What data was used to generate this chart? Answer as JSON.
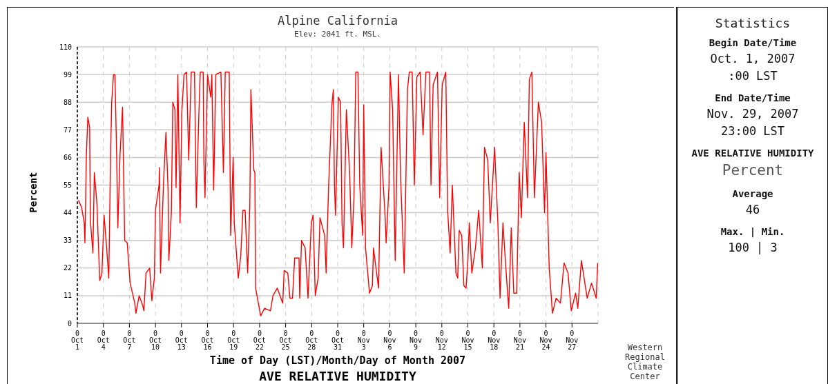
{
  "chart_data": [
    {
      "type": "line",
      "title": "Alpine California",
      "subtitle": "Elev: 2041 ft. MSL.",
      "xlabel": "Time of Day (LST)/Month/Day of Month 2007",
      "ylabel": "Percent",
      "annotations": [
        "AVE RELATIVE HUMIDITY",
        "Western Regional Climate Center"
      ],
      "xlim": [
        "2007-10-01T00:00",
        "2007-11-30T00:00"
      ],
      "ylim": [
        0,
        110
      ],
      "yticks": [
        0,
        11,
        22,
        33,
        44,
        55,
        66,
        77,
        88,
        99,
        110
      ],
      "xticks": [
        {
          "value": "2007-10-01T00:00",
          "label": "0\nOct\n1"
        },
        {
          "value": "2007-10-04T00:00",
          "label": "0\nOct\n4"
        },
        {
          "value": "2007-10-07T00:00",
          "label": "0\nOct\n7"
        },
        {
          "value": "2007-10-10T00:00",
          "label": "0\nOct\n10"
        },
        {
          "value": "2007-10-13T00:00",
          "label": "0\nOct\n13"
        },
        {
          "value": "2007-10-16T00:00",
          "label": "0\nOct\n16"
        },
        {
          "value": "2007-10-19T00:00",
          "label": "0\nOct\n19"
        },
        {
          "value": "2007-10-22T00:00",
          "label": "0\nOct\n22"
        },
        {
          "value": "2007-10-25T00:00",
          "label": "0\nOct\n25"
        },
        {
          "value": "2007-10-28T00:00",
          "label": "0\nOct\n28"
        },
        {
          "value": "2007-10-31T00:00",
          "label": "0\nOct\n31"
        },
        {
          "value": "2007-11-03T00:00",
          "label": "0\nNov\n3"
        },
        {
          "value": "2007-11-06T00:00",
          "label": "0\nNov\n6"
        },
        {
          "value": "2007-11-09T00:00",
          "label": "0\nNov\n9"
        },
        {
          "value": "2007-11-12T00:00",
          "label": "0\nNov\n12"
        },
        {
          "value": "2007-11-15T00:00",
          "label": "0\nNov\n15"
        },
        {
          "value": "2007-11-18T00:00",
          "label": "0\nNov\n18"
        },
        {
          "value": "2007-11-21T00:00",
          "label": "0\nNov\n21"
        },
        {
          "value": "2007-11-24T00:00",
          "label": "0\nNov\n24"
        },
        {
          "value": "2007-11-27T00:00",
          "label": "0\nNov\n27"
        }
      ],
      "grid": true,
      "series": [
        {
          "color": "#ff0000",
          "x": [
            "2007-10-01T03:00",
            "2007-10-01T12:00",
            "2007-10-01T19:00",
            "2007-10-01T21:00",
            "2007-10-02T01:00",
            "2007-10-02T05:00",
            "2007-10-02T10:00",
            "2007-10-02T12:00",
            "2007-10-02T19:00",
            "2007-10-02T23:00",
            "2007-10-03T06:00",
            "2007-10-03T14:00",
            "2007-10-03T20:00",
            "2007-10-04T02:00",
            "2007-10-04T08:00",
            "2007-10-04T15:00",
            "2007-10-04T20:00",
            "2007-10-04T23:00",
            "2007-10-05T04:00",
            "2007-10-05T08:00",
            "2007-10-05T13:00",
            "2007-10-05T16:00",
            "2007-10-05T22:00",
            "2007-10-06T05:00",
            "2007-10-06T11:00",
            "2007-10-06T18:00",
            "2007-10-07T02:00",
            "2007-10-07T15:00",
            "2007-10-07T18:00",
            "2007-10-08T03:00",
            "2007-10-08T13:00",
            "2007-10-08T16:00",
            "2007-10-08T22:00",
            "2007-10-09T08:00",
            "2007-10-09T14:00",
            "2007-10-09T21:00",
            "2007-10-10T00:00",
            "2007-10-10T10:00",
            "2007-10-10T11:00",
            "2007-10-10T14:00",
            "2007-10-10T22:00",
            "2007-10-11T05:00",
            "2007-10-11T11:00",
            "2007-10-11T13:00",
            "2007-10-11T20:00",
            "2007-10-12T00:00",
            "2007-10-12T06:00",
            "2007-10-12T09:00",
            "2007-10-12T14:00",
            "2007-10-12T20:00",
            "2007-10-13T01:00",
            "2007-10-13T07:00",
            "2007-10-13T14:00",
            "2007-10-13T20:00",
            "2007-10-14T03:00",
            "2007-10-14T12:00",
            "2007-10-14T17:00",
            "2007-10-15T00:00",
            "2007-10-15T04:00",
            "2007-10-15T12:00",
            "2007-10-15T14:00",
            "2007-10-15T17:00",
            "2007-10-15T22:00",
            "2007-10-16T00:00",
            "2007-10-16T09:00",
            "2007-10-16T12:00",
            "2007-10-16T17:00",
            "2007-10-16T23:00",
            "2007-10-17T13:00",
            "2007-10-17T20:00",
            "2007-10-18T01:00",
            "2007-10-18T12:00",
            "2007-10-18T16:00",
            "2007-10-18T23:00",
            "2007-10-19T02:00",
            "2007-10-19T13:00",
            "2007-10-19T20:00",
            "2007-10-20T02:00",
            "2007-10-20T08:00",
            "2007-10-20T15:00",
            "2007-10-20T21:00",
            "2007-10-21T00:00",
            "2007-10-21T08:00",
            "2007-10-21T11:00",
            "2007-10-21T13:00",
            "2007-10-22T03:00",
            "2007-10-22T14:00",
            "2007-10-23T06:00",
            "2007-10-23T13:00",
            "2007-10-24T01:00",
            "2007-10-24T16:00",
            "2007-10-24T20:00",
            "2007-10-25T06:00",
            "2007-10-25T12:00",
            "2007-10-25T19:00",
            "2007-10-26T01:00",
            "2007-10-26T13:00",
            "2007-10-26T15:00",
            "2007-10-26T20:00",
            "2007-10-27T06:00",
            "2007-10-27T14:00",
            "2007-10-27T23:00",
            "2007-10-28T04:00",
            "2007-10-28T10:00",
            "2007-10-28T18:00",
            "2007-10-28T23:00",
            "2007-10-29T12:00",
            "2007-10-29T16:00",
            "2007-10-29T23:00",
            "2007-10-30T08:00",
            "2007-10-30T12:00",
            "2007-10-30T15:00",
            "2007-10-30T18:00",
            "2007-10-31T02:00",
            "2007-10-31T08:00",
            "2007-10-31T12:00",
            "2007-10-31T16:00",
            "2007-11-01T00:00",
            "2007-11-01T09:00",
            "2007-11-01T15:00",
            "2007-11-01T21:00",
            "2007-11-02T02:00",
            "2007-11-02T08:00",
            "2007-11-02T13:00",
            "2007-11-02T21:00",
            "2007-11-03T00:00",
            "2007-11-03T05:00",
            "2007-11-03T16:00",
            "2007-11-04T00:00",
            "2007-11-04T03:00",
            "2007-11-04T17:00",
            "2007-11-05T00:00",
            "2007-11-05T11:00",
            "2007-11-05T14:00",
            "2007-11-05T22:00",
            "2007-11-06T01:00",
            "2007-11-06T08:00",
            "2007-11-06T15:00",
            "2007-11-07T00:00",
            "2007-11-07T06:00",
            "2007-11-07T16:00",
            "2007-11-08T01:00",
            "2007-11-08T06:00",
            "2007-11-08T14:00",
            "2007-11-08T20:00",
            "2007-11-09T03:00",
            "2007-11-09T12:00",
            "2007-11-09T20:00",
            "2007-11-10T04:00",
            "2007-11-10T14:00",
            "2007-11-10T18:00",
            "2007-11-11T00:00",
            "2007-11-11T12:00",
            "2007-11-11T18:00",
            "2007-11-12T01:00",
            "2007-11-12T11:00",
            "2007-11-12T16:00",
            "2007-11-12T23:00",
            "2007-11-13T05:00",
            "2007-11-13T15:00",
            "2007-11-13T20:00",
            "2007-11-14T00:00",
            "2007-11-14T07:00",
            "2007-11-14T13:00",
            "2007-11-14T19:00",
            "2007-11-15T00:00",
            "2007-11-15T04:00",
            "2007-11-15T11:00",
            "2007-11-15T21:00",
            "2007-11-16T06:00",
            "2007-11-16T16:00",
            "2007-11-16T22:00",
            "2007-11-17T07:00",
            "2007-11-17T14:00",
            "2007-11-18T02:00",
            "2007-11-18T11:00",
            "2007-11-18T17:00",
            "2007-11-19T01:00",
            "2007-11-19T10:00",
            "2007-11-19T17:00",
            "2007-11-20T00:00",
            "2007-11-20T07:00",
            "2007-11-20T15:00",
            "2007-11-20T22:00",
            "2007-11-21T04:00",
            "2007-11-21T12:00",
            "2007-11-21T21:00",
            "2007-11-22T02:00",
            "2007-11-22T09:00",
            "2007-11-22T16:00",
            "2007-11-23T03:00",
            "2007-11-23T12:00",
            "2007-11-23T20:00",
            "2007-11-24T00:00",
            "2007-11-24T09:00",
            "2007-11-24T18:00",
            "2007-11-25T04:00",
            "2007-11-25T16:00",
            "2007-11-26T02:00",
            "2007-11-26T13:00",
            "2007-11-26T22:00",
            "2007-11-27T10:00",
            "2007-11-27T16:00",
            "2007-11-28T02:00",
            "2007-11-28T18:00",
            "2007-11-29T06:00",
            "2007-11-29T19:00",
            "2007-11-29T23:00"
          ],
          "values": [
            49,
            46,
            40,
            32,
            67,
            82,
            78,
            41,
            28,
            60,
            48,
            17,
            20,
            43,
            32,
            18,
            68,
            88,
            99,
            99,
            65,
            38,
            67,
            86,
            33,
            32,
            16,
            8,
            4,
            11,
            7,
            5,
            20,
            22,
            9,
            18,
            45,
            55,
            62,
            20,
            55,
            76,
            53,
            25,
            44,
            88,
            85,
            54,
            99,
            40,
            84,
            99,
            100,
            65,
            100,
            100,
            46,
            83,
            100,
            100,
            65,
            50,
            85,
            99,
            90,
            99,
            53,
            99,
            100,
            60,
            100,
            100,
            35,
            66,
            40,
            18,
            27,
            45,
            45,
            20,
            47,
            93,
            61,
            60,
            14,
            3,
            6,
            5,
            11,
            14,
            8,
            21,
            20,
            10,
            10,
            26,
            26,
            10,
            33,
            30,
            10,
            40,
            43,
            11,
            18,
            42,
            35,
            20,
            55,
            87,
            93,
            55,
            43,
            90,
            88,
            40,
            30,
            85,
            60,
            30,
            50,
            100,
            100,
            55,
            35,
            87,
            30,
            12,
            15,
            30,
            14,
            70,
            43,
            32,
            55,
            100,
            85,
            25,
            99,
            58,
            20,
            93,
            100,
            100,
            55,
            98,
            100,
            75,
            100,
            100,
            55,
            95,
            100,
            50,
            95,
            100,
            45,
            28,
            55,
            20,
            18,
            37,
            35,
            15,
            14,
            25,
            40,
            20,
            30,
            45,
            22,
            70,
            65,
            40,
            70,
            40,
            10,
            40,
            20,
            6,
            38,
            12,
            12,
            60,
            42,
            80,
            50,
            97,
            100,
            50,
            88,
            80,
            44,
            68,
            22,
            4,
            10,
            8,
            24,
            20,
            5,
            12,
            6,
            25,
            10,
            16,
            10,
            24
          ]
        }
      ]
    },
    {
      "type": "other",
      "title": "Statistics",
      "annotations": [
        "Begin Date/Time",
        "Oct. 1, 2007",
        ":00 LST",
        "End Date/Time",
        "Nov. 29, 2007",
        "23:00 LST",
        "AVE RELATIVE HUMIDITY",
        "Percent",
        "Average",
        "46",
        "Max. | Min.",
        "100 | 3"
      ]
    }
  ]
}
